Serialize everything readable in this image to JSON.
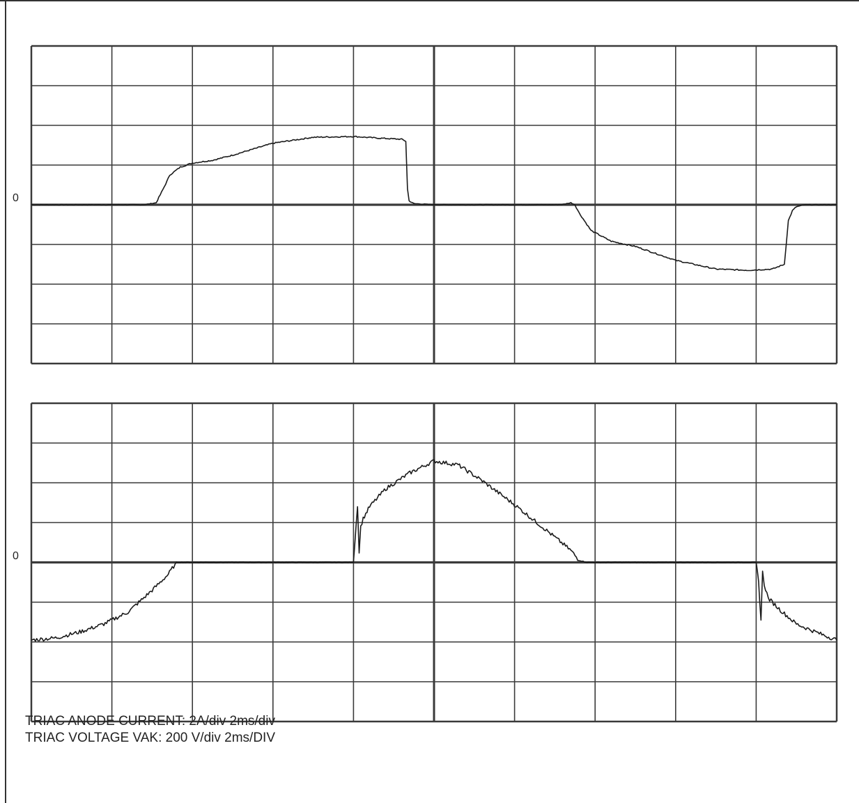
{
  "captions": {
    "current": "TRIAC ANODE CURRENT: 2A/div 2ms/div",
    "voltage": "TRIAC VOLTAGE VAK: 200 V/div 2ms/DIV"
  },
  "chart_data": [
    {
      "type": "line",
      "panel": "top",
      "zero_label": "0",
      "grid": true,
      "x_units": "div",
      "y_units": "div",
      "xlim": [
        0,
        10
      ],
      "ylim": [
        -4,
        4
      ],
      "series": [
        {
          "x": [
            0,
            1.4,
            1.55,
            1.65,
            1.72,
            1.85,
            2.0,
            2.25,
            2.5,
            3.0,
            3.5,
            4.0,
            4.3,
            4.6,
            4.65,
            4.67,
            4.69,
            4.75,
            5.0,
            5.5,
            6.0,
            6.5,
            6.6,
            6.7,
            6.75,
            6.8,
            6.95,
            7.2,
            7.5,
            8.0,
            8.5,
            8.9,
            9.2,
            9.35,
            9.4,
            9.45,
            9.5,
            9.6,
            10.0
          ],
          "y": [
            0,
            0,
            0.05,
            0.45,
            0.75,
            0.95,
            1.05,
            1.12,
            1.25,
            1.55,
            1.7,
            1.72,
            1.68,
            1.65,
            1.6,
            0.4,
            0.1,
            0.03,
            0,
            0,
            0,
            0,
            0.01,
            0.05,
            0.0,
            -0.2,
            -0.65,
            -0.92,
            -1.05,
            -1.4,
            -1.62,
            -1.65,
            -1.62,
            -1.5,
            -0.4,
            -0.15,
            -0.05,
            0,
            0
          ]
        }
      ]
    },
    {
      "type": "line",
      "panel": "bottom",
      "zero_label": "0",
      "grid": true,
      "x_units": "div",
      "y_units": "div",
      "xlim": [
        0,
        10
      ],
      "ylim": [
        -4,
        4
      ],
      "series": [
        {
          "x": [
            0,
            0.3,
            0.6,
            0.9,
            1.2,
            1.5,
            1.7,
            1.8,
            2.0,
            3.0,
            4.0,
            4.0,
            4.05,
            4.07,
            4.09,
            4.12,
            4.2,
            4.4,
            4.7,
            5.0,
            5.3,
            5.6,
            6.0,
            6.4,
            6.7,
            6.8,
            6.9,
            7.5,
            8.5,
            9.0,
            9.03,
            9.06,
            9.08,
            9.1,
            9.15,
            9.3,
            9.5,
            9.8,
            10.0
          ],
          "y": [
            -1.95,
            -1.9,
            -1.75,
            -1.55,
            -1.25,
            -0.7,
            -0.3,
            0,
            0,
            0,
            0,
            0.02,
            1.45,
            0.25,
            0.9,
            1.1,
            1.4,
            1.85,
            2.25,
            2.55,
            2.45,
            2.05,
            1.45,
            0.8,
            0.3,
            0.05,
            0,
            0,
            0,
            0,
            -0.5,
            -1.45,
            -0.25,
            -0.55,
            -0.9,
            -1.2,
            -1.55,
            -1.8,
            -1.95
          ]
        }
      ]
    }
  ]
}
